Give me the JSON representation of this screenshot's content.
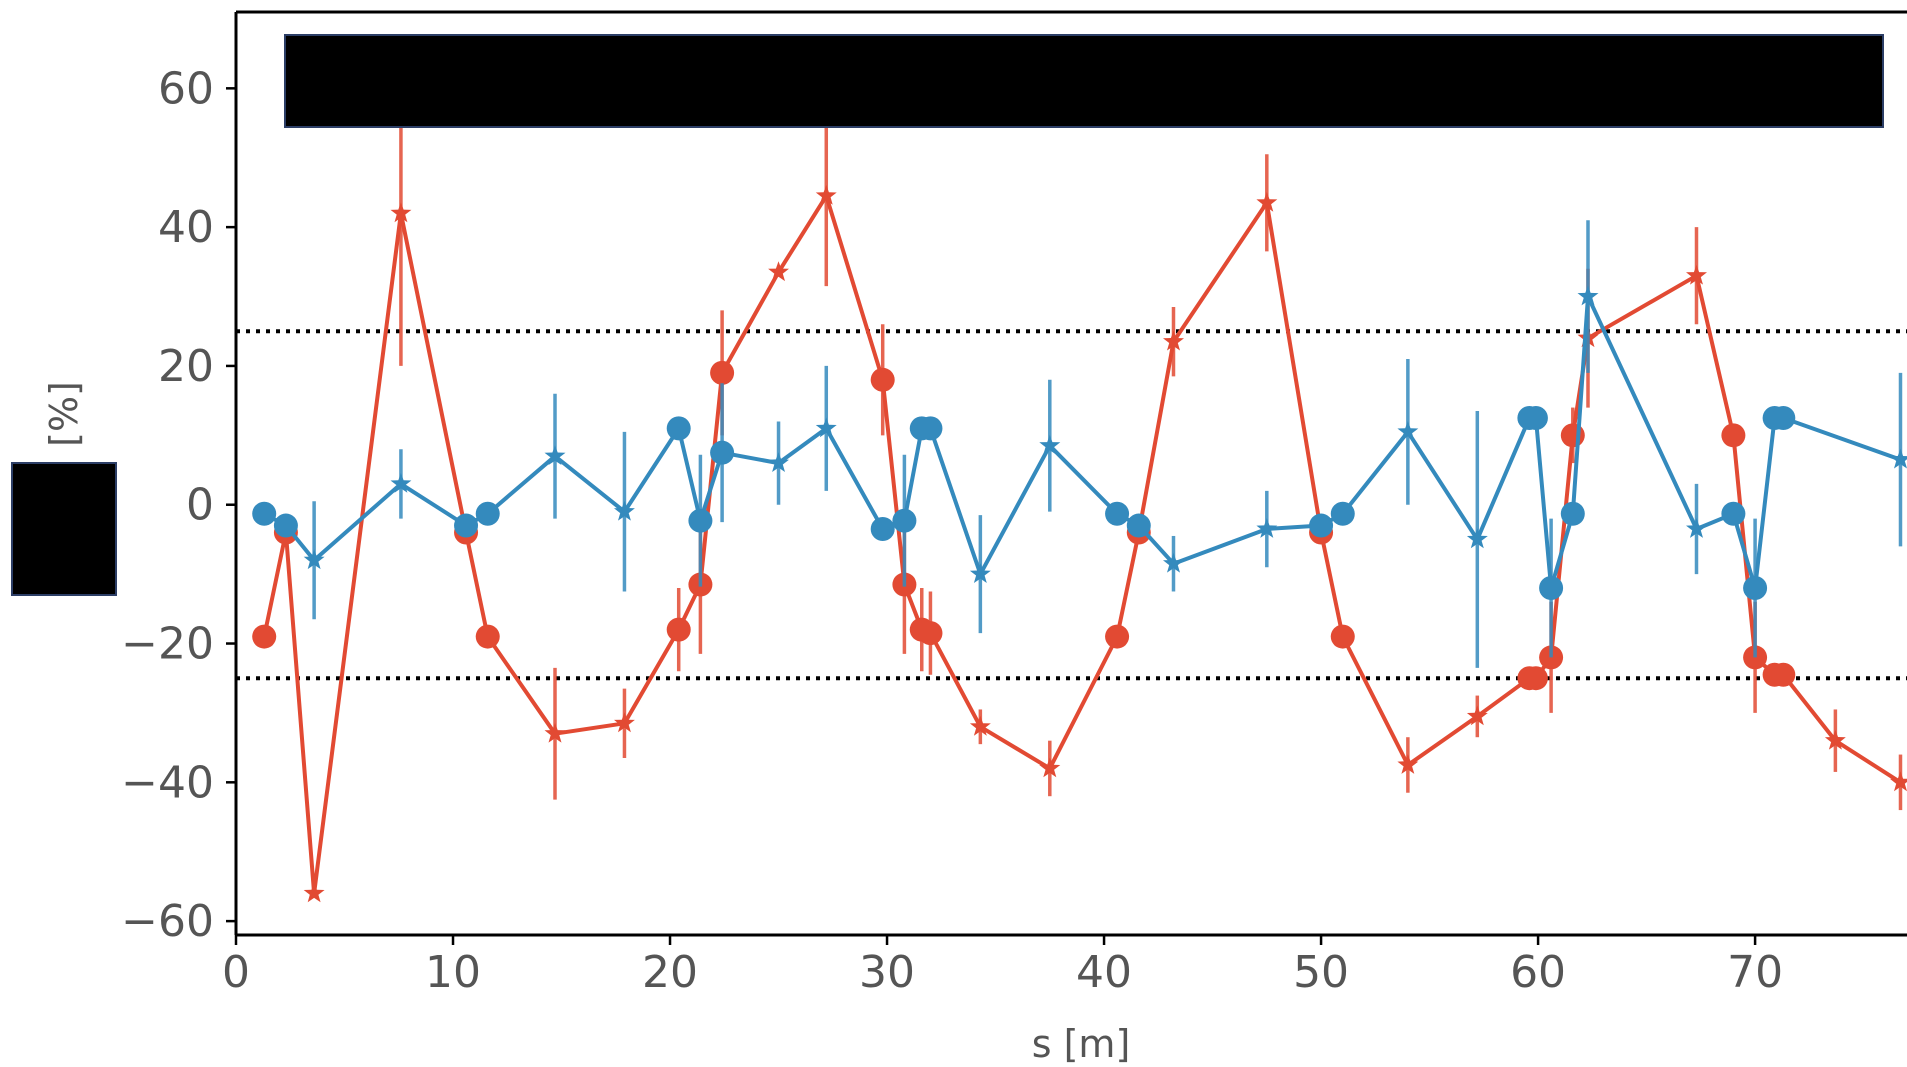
{
  "chart_data": {
    "type": "line",
    "title": "",
    "xlabel": "s [m]",
    "ylabel": "[%]",
    "xlim": [
      0,
      77
    ],
    "ylim": [
      -62,
      71
    ],
    "xticks": [
      0,
      10,
      20,
      30,
      40,
      50,
      60,
      70
    ],
    "yticks": [
      -60,
      -40,
      -20,
      0,
      20,
      40,
      60
    ],
    "xtick_labels": [
      "0",
      "10",
      "20",
      "30",
      "40",
      "50",
      "60",
      "70"
    ],
    "ytick_labels": [
      "−60",
      "−40",
      "−20",
      "0",
      "20",
      "40",
      "60"
    ],
    "grid": false,
    "reference_lines": [
      25,
      -25
    ],
    "redactions": [
      {
        "target": "legend"
      },
      {
        "target": "y-axis label symbol"
      }
    ],
    "series": [
      {
        "color": "#E24A33",
        "points": [
          {
            "x": 1.3,
            "y": -19,
            "m": "o"
          },
          {
            "x": 2.3,
            "y": -4,
            "m": "o"
          },
          {
            "x": 3.6,
            "y": -56,
            "m": "*",
            "e": 0
          },
          {
            "x": 7.6,
            "y": 42,
            "m": "*",
            "e": 22
          },
          {
            "x": 10.6,
            "y": -4,
            "m": "o"
          },
          {
            "x": 11.6,
            "y": -19,
            "m": "o"
          },
          {
            "x": 14.7,
            "y": -33,
            "m": "*",
            "e": 9.5
          },
          {
            "x": 17.9,
            "y": -31.5,
            "m": "*",
            "e": 5
          },
          {
            "x": 20.4,
            "y": -18,
            "m": "o",
            "e": 6
          },
          {
            "x": 21.4,
            "y": -11.5,
            "m": "o",
            "e": 10
          },
          {
            "x": 22.4,
            "y": 19,
            "m": "o",
            "e": 9
          },
          {
            "x": 25.0,
            "y": 33.5,
            "m": "*",
            "e": 0
          },
          {
            "x": 27.2,
            "y": 44.5,
            "m": "*",
            "e": 13
          },
          {
            "x": 29.8,
            "y": 18,
            "m": "o",
            "e": 8
          },
          {
            "x": 30.8,
            "y": -11.5,
            "m": "o",
            "e": 10
          },
          {
            "x": 31.6,
            "y": -18,
            "m": "o",
            "e": 6
          },
          {
            "x": 32.0,
            "y": -18.5,
            "m": "o",
            "e": 6
          },
          {
            "x": 34.3,
            "y": -32,
            "m": "*",
            "e": 2.5
          },
          {
            "x": 37.5,
            "y": -38,
            "m": "*",
            "e": 4
          },
          {
            "x": 40.6,
            "y": -19,
            "m": "o"
          },
          {
            "x": 41.6,
            "y": -4,
            "m": "o"
          },
          {
            "x": 43.2,
            "y": 23.5,
            "m": "*",
            "e": 5
          },
          {
            "x": 47.5,
            "y": 43.5,
            "m": "*",
            "e": 7
          },
          {
            "x": 50.0,
            "y": -4,
            "m": "o"
          },
          {
            "x": 51.0,
            "y": -19,
            "m": "o"
          },
          {
            "x": 54.0,
            "y": -37.5,
            "m": "*",
            "e": 4
          },
          {
            "x": 57.2,
            "y": -30.5,
            "m": "*",
            "e": 3
          },
          {
            "x": 59.6,
            "y": -25,
            "m": "o"
          },
          {
            "x": 59.9,
            "y": -25,
            "m": "o"
          },
          {
            "x": 60.6,
            "y": -22,
            "m": "o",
            "e": 8
          },
          {
            "x": 61.6,
            "y": 10,
            "m": "o",
            "e": 4
          },
          {
            "x": 62.3,
            "y": 24,
            "m": "*",
            "e": 10
          },
          {
            "x": 67.3,
            "y": 33,
            "m": "*",
            "e": 7
          },
          {
            "x": 69.0,
            "y": 10,
            "m": "o"
          },
          {
            "x": 70.0,
            "y": -22,
            "m": "o",
            "e": 8
          },
          {
            "x": 70.9,
            "y": -24.5,
            "m": "o"
          },
          {
            "x": 71.3,
            "y": -24.5,
            "m": "o"
          },
          {
            "x": 73.7,
            "y": -34,
            "m": "*",
            "e": 4.5
          },
          {
            "x": 76.7,
            "y": -40,
            "m": "*",
            "e": 4
          }
        ]
      },
      {
        "color": "#348ABD",
        "points": [
          {
            "x": 1.3,
            "y": -1.3,
            "m": "o"
          },
          {
            "x": 2.3,
            "y": -3,
            "m": "o"
          },
          {
            "x": 3.6,
            "y": -8,
            "m": "*",
            "e": 8.5
          },
          {
            "x": 7.6,
            "y": 3,
            "m": "*",
            "e": 5
          },
          {
            "x": 10.6,
            "y": -3,
            "m": "o"
          },
          {
            "x": 11.6,
            "y": -1.3,
            "m": "o"
          },
          {
            "x": 14.7,
            "y": 7,
            "m": "*",
            "e": 9
          },
          {
            "x": 17.9,
            "y": -1,
            "m": "*",
            "e": 11.5
          },
          {
            "x": 20.4,
            "y": 11,
            "m": "o"
          },
          {
            "x": 21.4,
            "y": -2.3,
            "m": "o",
            "e": 9.5
          },
          {
            "x": 22.4,
            "y": 7.5,
            "m": "o",
            "e": 10
          },
          {
            "x": 25.0,
            "y": 6,
            "m": "*",
            "e": 6
          },
          {
            "x": 27.2,
            "y": 11,
            "m": "*",
            "e": 9
          },
          {
            "x": 29.8,
            "y": -3.5,
            "m": "o"
          },
          {
            "x": 30.8,
            "y": -2.3,
            "m": "o",
            "e": 9.5
          },
          {
            "x": 31.6,
            "y": 11,
            "m": "o"
          },
          {
            "x": 32.0,
            "y": 11,
            "m": "o"
          },
          {
            "x": 34.3,
            "y": -10,
            "m": "*",
            "e": 8.5
          },
          {
            "x": 37.5,
            "y": 8.5,
            "m": "*",
            "e": 9.5
          },
          {
            "x": 40.6,
            "y": -1.3,
            "m": "o"
          },
          {
            "x": 41.6,
            "y": -3,
            "m": "o"
          },
          {
            "x": 43.2,
            "y": -8.5,
            "m": "*",
            "e": 4
          },
          {
            "x": 47.5,
            "y": -3.5,
            "m": "*",
            "e": 5.5
          },
          {
            "x": 50.0,
            "y": -3,
            "m": "o"
          },
          {
            "x": 51.0,
            "y": -1.3,
            "m": "o"
          },
          {
            "x": 54.0,
            "y": 10.5,
            "m": "*",
            "e": 10.5
          },
          {
            "x": 57.2,
            "y": -5,
            "m": "*",
            "e": 18.5
          },
          {
            "x": 59.6,
            "y": 12.5,
            "m": "o"
          },
          {
            "x": 59.9,
            "y": 12.5,
            "m": "o"
          },
          {
            "x": 60.6,
            "y": -12,
            "m": "o",
            "e": 10
          },
          {
            "x": 61.6,
            "y": -1.3,
            "m": "o"
          },
          {
            "x": 62.3,
            "y": 30,
            "m": "*",
            "e": 11
          },
          {
            "x": 67.3,
            "y": -3.5,
            "m": "*",
            "e": 6.5
          },
          {
            "x": 69.0,
            "y": -1.3,
            "m": "o"
          },
          {
            "x": 70.0,
            "y": -12,
            "m": "o",
            "e": 10
          },
          {
            "x": 70.9,
            "y": 12.5,
            "m": "o"
          },
          {
            "x": 71.3,
            "y": 12.5,
            "m": "o"
          },
          {
            "x": 76.7,
            "y": 6.5,
            "m": "*",
            "e": 12.5
          }
        ]
      }
    ]
  }
}
